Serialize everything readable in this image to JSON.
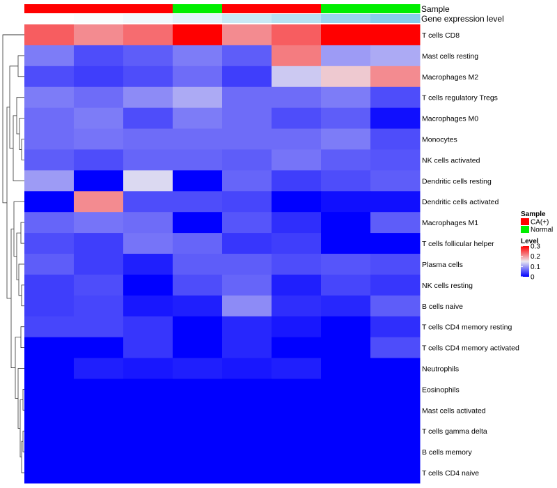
{
  "chart_data": {
    "type": "heatmap",
    "annotation_titles": [
      "Sample",
      "Gene expression level"
    ],
    "sample_groups": [
      "CA(+)",
      "CA(+)",
      "CA(+)",
      "Normal",
      "CA(+)",
      "CA(+)",
      "Normal",
      "Normal"
    ],
    "gene_expression_levels": [
      0.0,
      0.05,
      0.12,
      0.25,
      0.45,
      0.6,
      0.85,
      1.0
    ],
    "rows": [
      "T cells CD8",
      "Mast cells resting",
      "Macrophages M2",
      "T cells regulatory  Tregs",
      "Macrophages M0",
      "Monocytes",
      "NK cells activated",
      "Dendritic cells resting",
      "Dendritic cells activated",
      "Macrophages M1",
      "T cells follicular helper",
      "Plasma cells",
      "NK cells resting",
      "B cells naive",
      "T cells CD4 memory resting",
      "T cells CD4 memory activated",
      "Neutrophils",
      "Eosinophils",
      "Mast cells activated",
      "T cells gamma delta",
      "B cells memory",
      "T cells CD4 naive"
    ],
    "values": [
      [
        0.24,
        0.21,
        0.23,
        0.3,
        0.21,
        0.24,
        0.3,
        0.3
      ],
      [
        0.08,
        0.05,
        0.06,
        0.08,
        0.06,
        0.22,
        0.1,
        0.11
      ],
      [
        0.05,
        0.04,
        0.05,
        0.07,
        0.04,
        0.13,
        0.17,
        0.21
      ],
      [
        0.08,
        0.07,
        0.09,
        0.11,
        0.07,
        0.07,
        0.08,
        0.05
      ],
      [
        0.07,
        0.08,
        0.05,
        0.08,
        0.07,
        0.05,
        0.06,
        0.01
      ],
      [
        0.07,
        0.075,
        0.07,
        0.07,
        0.07,
        0.07,
        0.08,
        0.05
      ],
      [
        0.06,
        0.05,
        0.065,
        0.065,
        0.06,
        0.075,
        0.06,
        0.055
      ],
      [
        0.1,
        0.0,
        0.14,
        0.0,
        0.065,
        0.04,
        0.05,
        0.06
      ],
      [
        0.0,
        0.21,
        0.05,
        0.05,
        0.045,
        0.0,
        0.01,
        0.01
      ],
      [
        0.065,
        0.075,
        0.07,
        0.0,
        0.055,
        0.03,
        0.0,
        0.06
      ],
      [
        0.05,
        0.04,
        0.075,
        0.065,
        0.035,
        0.04,
        0.0,
        0.0
      ],
      [
        0.06,
        0.04,
        0.02,
        0.06,
        0.06,
        0.05,
        0.055,
        0.05
      ],
      [
        0.04,
        0.05,
        0.0,
        0.05,
        0.065,
        0.02,
        0.045,
        0.035
      ],
      [
        0.04,
        0.045,
        0.015,
        0.02,
        0.09,
        0.03,
        0.025,
        0.06
      ],
      [
        0.045,
        0.045,
        0.035,
        0.0,
        0.025,
        0.015,
        0.0,
        0.03
      ],
      [
        0.0,
        0.0,
        0.035,
        0.0,
        0.025,
        0.0,
        0.0,
        0.05
      ],
      [
        0.0,
        0.02,
        0.015,
        0.02,
        0.015,
        0.02,
        0.0,
        0.0
      ],
      [
        0.0,
        0.0,
        0.0,
        0.0,
        0.0,
        0.0,
        0.0,
        0.0
      ],
      [
        0.0,
        0.0,
        0.0,
        0.0,
        0.0,
        0.0,
        0.0,
        0.0
      ],
      [
        0.0,
        0.0,
        0.0,
        0.0,
        0.0,
        0.0,
        0.0,
        0.0
      ],
      [
        0.0,
        0.0,
        0.0,
        0.0,
        0.0,
        0.0,
        0.0,
        0.0
      ],
      [
        0.0,
        0.0,
        0.0,
        0.0,
        0.0,
        0.0,
        0.0,
        0.0
      ]
    ],
    "legend": {
      "sample_title": "Sample",
      "sample_entries": [
        {
          "label": "CA(+)",
          "color": "#ff0000"
        },
        {
          "label": "Normal",
          "color": "#00ee00"
        }
      ],
      "level_title": "Level",
      "level_ticks": [
        "0.3",
        "0.2",
        "0.1",
        "0"
      ],
      "level_range": [
        0,
        0.3
      ],
      "placement": "right"
    },
    "colors": {
      "low": "#0000ff",
      "mid": "#ebe8f0",
      "high": "#ff0000",
      "expr_light": "#ffffff",
      "expr_dark": "#87ceeb"
    }
  }
}
